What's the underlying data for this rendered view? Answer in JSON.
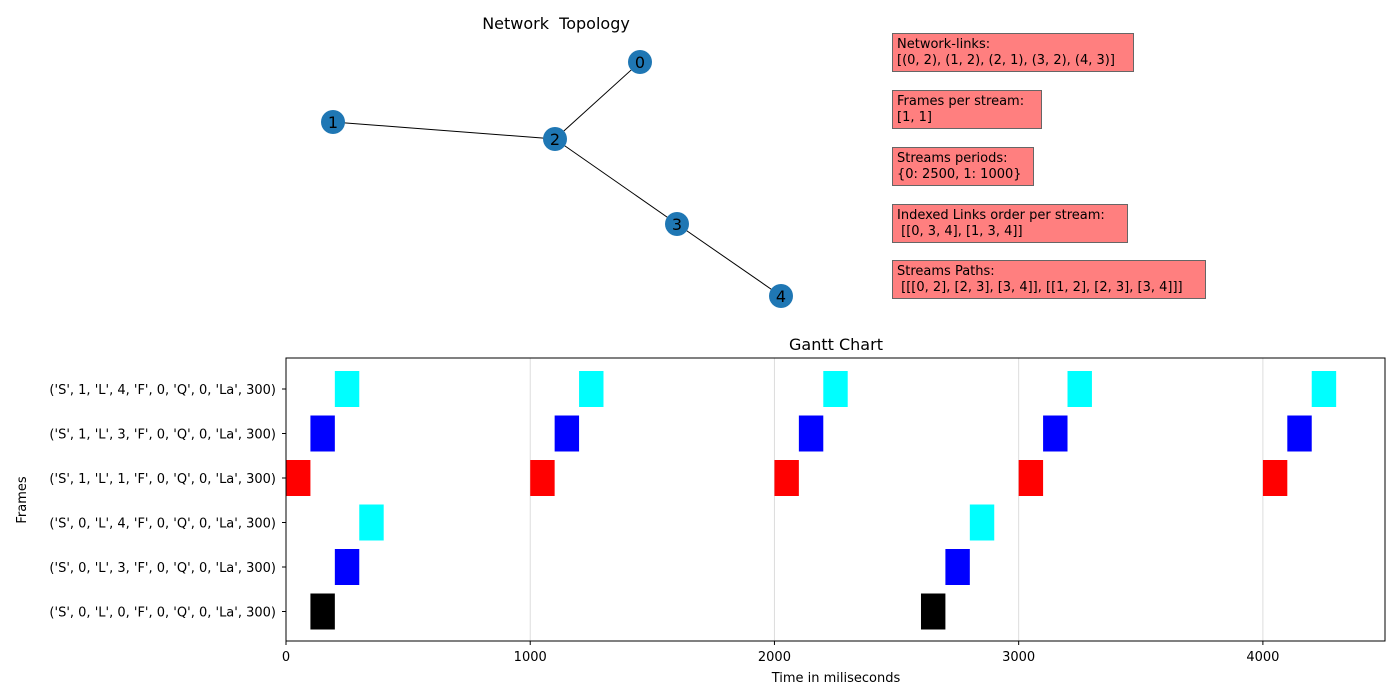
{
  "network": {
    "title": "Network  Topology",
    "nodes": [
      "0",
      "1",
      "2",
      "3",
      "4"
    ],
    "edges": [
      [
        0,
        2
      ],
      [
        1,
        2
      ],
      [
        2,
        3
      ],
      [
        3,
        4
      ]
    ],
    "node_color": "#1f77b4",
    "edge_color": "#000000"
  },
  "info_boxes": [
    {
      "heading": "Network-links:",
      "value": "[(0, 2), (1, 2), (2, 1), (3, 2), (4, 3)]"
    },
    {
      "heading": "Frames per stream:",
      "value": "[1, 1]"
    },
    {
      "heading": "Streams periods:",
      "value": "{0: 2500, 1: 1000}"
    },
    {
      "heading": "Indexed Links order per stream:",
      "value": " [[0, 3, 4], [1, 3, 4]]"
    },
    {
      "heading": "Streams Paths:",
      "value": " [[[0, 2], [2, 3], [3, 4]], [[1, 2], [2, 3], [3, 4]]]"
    }
  ],
  "info_box_color": "#ff7f7f",
  "chart_data": {
    "type": "gantt",
    "title": "Gantt Chart",
    "xlabel": "Time in miliseconds",
    "ylabel": "Frames",
    "xlim": [
      0,
      4500
    ],
    "xticks": [
      0,
      1000,
      2000,
      3000,
      4000
    ],
    "grid": "vertical",
    "categories": [
      "('S', 1, 'L', 4, 'F', 0, 'Q', 0, 'La', 300)",
      "('S', 1, 'L', 3, 'F', 0, 'Q', 0, 'La', 300)",
      "('S', 1, 'L', 1, 'F', 0, 'Q', 0, 'La', 300)",
      "('S', 0, 'L', 4, 'F', 0, 'Q', 0, 'La', 300)",
      "('S', 0, 'L', 3, 'F', 0, 'Q', 0, 'La', 300)",
      "('S', 0, 'L', 0, 'F', 0, 'Q', 0, 'La', 300)"
    ],
    "series": [
      {
        "category": 0,
        "color": "#00ffff",
        "bars": [
          [
            200,
            300
          ],
          [
            1200,
            1300
          ],
          [
            2200,
            2300
          ],
          [
            3200,
            3300
          ],
          [
            4200,
            4300
          ]
        ]
      },
      {
        "category": 1,
        "color": "#0000ff",
        "bars": [
          [
            100,
            200
          ],
          [
            1100,
            1200
          ],
          [
            2100,
            2200
          ],
          [
            3100,
            3200
          ],
          [
            4100,
            4200
          ]
        ]
      },
      {
        "category": 2,
        "color": "#ff0000",
        "bars": [
          [
            0,
            100
          ],
          [
            1000,
            1100
          ],
          [
            2000,
            2100
          ],
          [
            3000,
            3100
          ],
          [
            4000,
            4100
          ]
        ]
      },
      {
        "category": 3,
        "color": "#00ffff",
        "bars": [
          [
            300,
            400
          ],
          [
            2800,
            2900
          ]
        ]
      },
      {
        "category": 4,
        "color": "#0000ff",
        "bars": [
          [
            200,
            300
          ],
          [
            2700,
            2800
          ]
        ]
      },
      {
        "category": 5,
        "color": "#000000",
        "bars": [
          [
            100,
            200
          ],
          [
            2600,
            2700
          ]
        ]
      }
    ]
  }
}
